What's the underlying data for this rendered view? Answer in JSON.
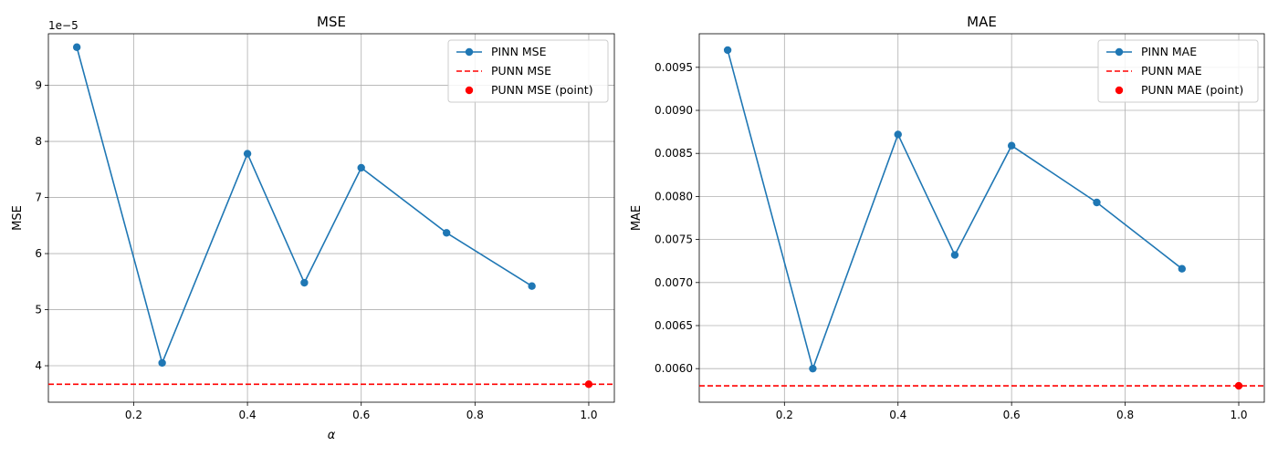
{
  "chart_data": [
    {
      "type": "line",
      "title": "MSE",
      "xlabel": "α",
      "ylabel": "MSE",
      "offset_label": "1e−5",
      "xlim": [
        0.05,
        1.045
      ],
      "ylim": [
        3.35,
        9.92
      ],
      "xticks": [
        0.2,
        0.4,
        0.6,
        0.8,
        1.0
      ],
      "xtick_labels": [
        "0.2",
        "0.4",
        "0.6",
        "0.8",
        "1.0"
      ],
      "yticks": [
        4,
        5,
        6,
        7,
        8,
        9
      ],
      "ytick_labels": [
        "4",
        "5",
        "6",
        "7",
        "8",
        "9"
      ],
      "grid": true,
      "legend_position": "top-right",
      "series": [
        {
          "name": "PINN MSE",
          "kind": "line-marker",
          "color": "#1f77b4",
          "x": [
            0.1,
            0.25,
            0.4,
            0.5,
            0.6,
            0.75,
            0.9
          ],
          "y": [
            9.68,
            4.05,
            7.78,
            5.48,
            7.53,
            6.37,
            5.42
          ]
        },
        {
          "name": "PUNN MSE",
          "kind": "hline",
          "color": "#ff0000",
          "y": 3.67
        },
        {
          "name": "PUNN MSE (point)",
          "kind": "point",
          "color": "#ff0000",
          "x": [
            1.0
          ],
          "y": [
            3.67
          ]
        }
      ]
    },
    {
      "type": "line",
      "title": "MAE",
      "xlabel": "",
      "ylabel": "MAE",
      "offset_label": "",
      "xlim": [
        0.05,
        1.045
      ],
      "ylim": [
        0.00561,
        0.00989
      ],
      "xticks": [
        0.2,
        0.4,
        0.6,
        0.8,
        1.0
      ],
      "xtick_labels": [
        "0.2",
        "0.4",
        "0.6",
        "0.8",
        "1.0"
      ],
      "yticks": [
        0.006,
        0.0065,
        0.007,
        0.0075,
        0.008,
        0.0085,
        0.009,
        0.0095
      ],
      "ytick_labels": [
        "0.0060",
        "0.0065",
        "0.0070",
        "0.0075",
        "0.0080",
        "0.0085",
        "0.0090",
        "0.0095"
      ],
      "grid": true,
      "legend_position": "top-right",
      "series": [
        {
          "name": "PINN MAE",
          "kind": "line-marker",
          "color": "#1f77b4",
          "x": [
            0.1,
            0.25,
            0.4,
            0.5,
            0.6,
            0.75,
            0.9
          ],
          "y": [
            0.0097,
            0.006,
            0.00872,
            0.00732,
            0.00859,
            0.00793,
            0.00716
          ]
        },
        {
          "name": "PUNN MAE",
          "kind": "hline",
          "color": "#ff0000",
          "y": 0.0058
        },
        {
          "name": "PUNN MAE (point)",
          "kind": "point",
          "color": "#ff0000",
          "x": [
            1.0
          ],
          "y": [
            0.0058
          ]
        }
      ]
    }
  ]
}
